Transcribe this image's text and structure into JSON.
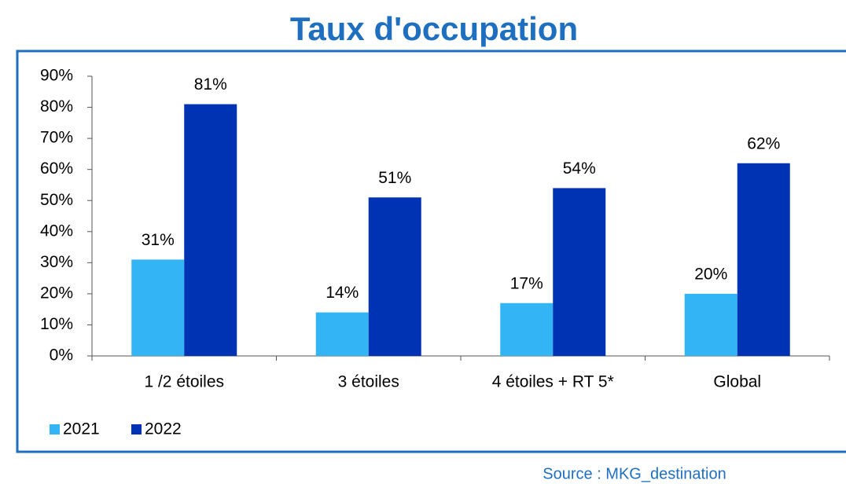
{
  "chart_data": {
    "type": "bar",
    "title": "Taux d'occupation",
    "categories": [
      "1 /2 étoiles",
      "3 étoiles",
      "4 étoiles + RT 5*",
      "Global"
    ],
    "series": [
      {
        "name": "2021",
        "color": "#33b5f5",
        "values": [
          31,
          14,
          17,
          20
        ],
        "value_labels": [
          "31%",
          "14%",
          "17%",
          "20%"
        ]
      },
      {
        "name": "2022",
        "color": "#0033b3",
        "values": [
          81,
          51,
          54,
          62
        ],
        "value_labels": [
          "81%",
          "51%",
          "54%",
          "62%"
        ]
      }
    ],
    "ylim": [
      0,
      90
    ],
    "yticks": [
      {
        "value": 0,
        "label": "0%"
      },
      {
        "value": 10,
        "label": "10%"
      },
      {
        "value": 20,
        "label": "20%"
      },
      {
        "value": 30,
        "label": "30%"
      },
      {
        "value": 40,
        "label": "40%"
      },
      {
        "value": 50,
        "label": "50%"
      },
      {
        "value": 60,
        "label": "60%"
      },
      {
        "value": 70,
        "label": "70%"
      },
      {
        "value": 80,
        "label": "80%"
      },
      {
        "value": 90,
        "label": "90%"
      }
    ],
    "grid": false,
    "legend": "bottom-left",
    "source": "Source : MKG_destination"
  }
}
